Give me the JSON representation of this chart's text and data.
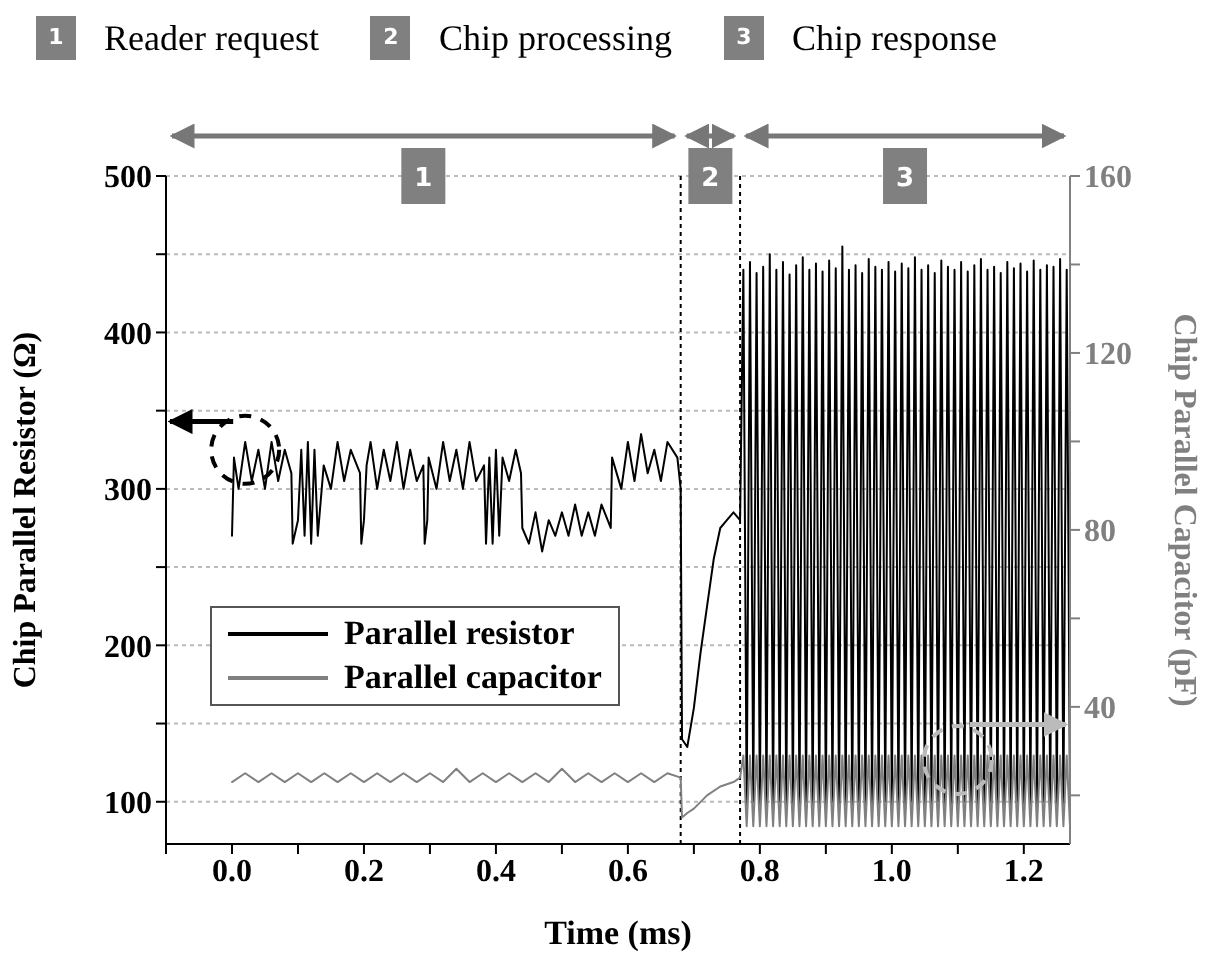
{
  "chart_data": {
    "type": "line",
    "xlabel": "Time (ms)",
    "ylabel": "Chip Parallel Resistor (Ω)",
    "y2label": "Chip Parallel Capacitor (pF)",
    "xlim": [
      -0.1,
      1.27
    ],
    "xticks": [
      {
        "value": -0.1,
        "label": null
      },
      {
        "value": 0,
        "label": "0.0"
      },
      {
        "value": 0.1,
        "label": null
      },
      {
        "value": 0.2,
        "label": "0.2"
      },
      {
        "value": 0.3,
        "label": null
      },
      {
        "value": 0.4,
        "label": "0.4"
      },
      {
        "value": 0.5,
        "label": null
      },
      {
        "value": 0.6,
        "label": "0.6"
      },
      {
        "value": 0.7,
        "label": null
      },
      {
        "value": 0.8,
        "label": "0.8"
      },
      {
        "value": 0.9,
        "label": null
      },
      {
        "value": 1.0,
        "label": "1.0"
      },
      {
        "value": 1.1,
        "label": null
      },
      {
        "value": 1.2,
        "label": "1.2"
      }
    ],
    "ylim": [
      73,
      500
    ],
    "yticks": [
      100,
      {
        "value": 150,
        "label": null
      },
      200,
      {
        "value": 250,
        "label": null
      },
      300,
      {
        "value": 350,
        "label": null
      },
      400,
      {
        "value": 450,
        "label": null
      },
      500
    ],
    "y2lim": [
      9,
      160
    ],
    "y2ticks": [
      {
        "value": 20,
        "label": null
      },
      40,
      {
        "value": 60,
        "label": null
      },
      80,
      {
        "value": 100,
        "label": null
      },
      120,
      {
        "value": 140,
        "label": null
      },
      160
    ],
    "grid": "y",
    "legend": "bottom left",
    "ref_lines": [
      {
        "axis": "x",
        "value": 0.68,
        "line_style": "dotted",
        "color": "#000000"
      },
      {
        "axis": "x",
        "value": 0.77,
        "line_style": "dotted",
        "color": "#000000"
      }
    ],
    "annotations": [
      {
        "text": "1",
        "x": 0.29,
        "y": 500
      },
      {
        "text": "2",
        "x": 0.725,
        "y": 500
      },
      {
        "text": "3",
        "x": 1.02,
        "y": 500
      },
      "Reader request",
      "Chip processing",
      "Chip response"
    ],
    "series": [
      {
        "name": "Parallel resistor",
        "color": "#000000",
        "x": [
          0,
          0.003,
          0.01,
          0.02,
          0.03,
          0.04,
          0.05,
          0.06,
          0.07,
          0.08,
          0.09,
          0.092,
          0.1,
          0.105,
          0.11,
          0.115,
          0.12,
          0.125,
          0.13,
          0.139,
          0.15,
          0.16,
          0.17,
          0.18,
          0.194,
          0.196,
          0.2,
          0.204,
          0.21,
          0.22,
          0.23,
          0.24,
          0.25,
          0.26,
          0.27,
          0.28,
          0.29,
          0.292,
          0.296,
          0.298,
          0.31,
          0.32,
          0.33,
          0.34,
          0.35,
          0.36,
          0.37,
          0.382,
          0.385,
          0.39,
          0.395,
          0.4,
          0.405,
          0.41,
          0.42,
          0.43,
          0.438,
          0.44,
          0.45,
          0.46,
          0.47,
          0.48,
          0.49,
          0.5,
          0.51,
          0.52,
          0.53,
          0.54,
          0.55,
          0.56,
          0.574,
          0.576,
          0.59,
          0.6,
          0.61,
          0.62,
          0.63,
          0.64,
          0.65,
          0.66,
          0.675,
          0.68,
          0.682,
          0.69,
          0.7,
          0.71,
          0.72,
          0.73,
          0.74,
          0.75,
          0.76,
          0.77,
          0.775,
          0.78,
          0.785,
          0.79,
          0.795,
          0.8,
          0.805,
          0.81,
          0.815,
          0.82,
          0.825,
          0.83,
          0.835,
          0.84,
          0.845,
          0.85,
          0.855,
          0.86,
          0.865,
          0.87,
          0.875,
          0.88,
          0.885,
          0.89,
          0.895,
          0.9,
          0.905,
          0.91,
          0.915,
          0.92,
          0.925,
          0.93,
          0.935,
          0.94,
          0.945,
          0.95,
          0.955,
          0.96,
          0.965,
          0.97,
          0.975,
          0.98,
          0.985,
          0.99,
          0.995,
          1.0,
          1.005,
          1.01,
          1.015,
          1.02,
          1.025,
          1.03,
          1.035,
          1.04,
          1.045,
          1.05,
          1.055,
          1.06,
          1.065,
          1.07,
          1.075,
          1.08,
          1.085,
          1.09,
          1.095,
          1.1,
          1.105,
          1.11,
          1.115,
          1.12,
          1.125,
          1.13,
          1.135,
          1.14,
          1.145,
          1.15,
          1.155,
          1.16,
          1.165,
          1.17,
          1.175,
          1.18,
          1.185,
          1.19,
          1.195,
          1.2,
          1.205,
          1.21,
          1.215,
          1.22,
          1.225,
          1.23,
          1.235,
          1.24,
          1.245,
          1.25,
          1.255,
          1.26,
          1.265,
          1.27
        ],
        "values": [
          270,
          320,
          300,
          330,
          305,
          325,
          300,
          330,
          305,
          325,
          310,
          265,
          280,
          325,
          270,
          330,
          265,
          325,
          270,
          315,
          300,
          330,
          305,
          325,
          310,
          265,
          280,
          315,
          330,
          300,
          325,
          305,
          330,
          300,
          325,
          305,
          315,
          265,
          280,
          320,
          300,
          330,
          305,
          325,
          300,
          330,
          305,
          315,
          265,
          320,
          265,
          325,
          270,
          320,
          305,
          325,
          310,
          275,
          265,
          285,
          260,
          280,
          270,
          285,
          270,
          290,
          270,
          285,
          270,
          290,
          275,
          320,
          300,
          330,
          305,
          335,
          310,
          325,
          305,
          330,
          320,
          300,
          140,
          135,
          160,
          195,
          225,
          255,
          275,
          280,
          285,
          280,
          440,
          95,
          445,
          100,
          438,
          95,
          442,
          98,
          450,
          95,
          440,
          100,
          445,
          95,
          437,
          98,
          443,
          95,
          448,
          100,
          440,
          95,
          444,
          98,
          439,
          95,
          446,
          100,
          441,
          95,
          455,
          98,
          440,
          95,
          443,
          100,
          438,
          95,
          447,
          98,
          442,
          95,
          440,
          100,
          445,
          95,
          439,
          98,
          444,
          95,
          441,
          100,
          448,
          95,
          440,
          98,
          443,
          95,
          438,
          100,
          446,
          95,
          442,
          98,
          440,
          95,
          445,
          100,
          439,
          95,
          443,
          98,
          447,
          95,
          440,
          100,
          442,
          95,
          438,
          98,
          445,
          95,
          441,
          100,
          444,
          95,
          439,
          98,
          446,
          95,
          440,
          100,
          443,
          95,
          442,
          98,
          447,
          95,
          440,
          100
        ]
      },
      {
        "name": "Parallel capacitor",
        "color": "#808080",
        "axis": "y2",
        "x": [
          0,
          0.02,
          0.04,
          0.06,
          0.08,
          0.1,
          0.12,
          0.14,
          0.16,
          0.18,
          0.2,
          0.22,
          0.24,
          0.26,
          0.28,
          0.3,
          0.32,
          0.34,
          0.36,
          0.38,
          0.4,
          0.42,
          0.44,
          0.46,
          0.48,
          0.5,
          0.52,
          0.54,
          0.56,
          0.58,
          0.6,
          0.62,
          0.64,
          0.66,
          0.68,
          0.682,
          0.69,
          0.7,
          0.72,
          0.74,
          0.76,
          0.77,
          0.775,
          0.78,
          0.785,
          0.79,
          0.795,
          0.8,
          0.805,
          0.81,
          0.815,
          0.82,
          0.825,
          0.83,
          0.835,
          0.84,
          0.845,
          0.85,
          0.855,
          0.86,
          0.865,
          0.87,
          0.875,
          0.88,
          0.885,
          0.89,
          0.895,
          0.9,
          0.905,
          0.91,
          0.915,
          0.92,
          0.925,
          0.93,
          0.935,
          0.94,
          0.945,
          0.95,
          0.955,
          0.96,
          0.965,
          0.97,
          0.975,
          0.98,
          0.985,
          0.99,
          0.995,
          1.0,
          1.005,
          1.01,
          1.015,
          1.02,
          1.025,
          1.03,
          1.035,
          1.04,
          1.045,
          1.05,
          1.055,
          1.06,
          1.065,
          1.07,
          1.075,
          1.08,
          1.085,
          1.09,
          1.095,
          1.1,
          1.105,
          1.11,
          1.115,
          1.12,
          1.125,
          1.13,
          1.135,
          1.14,
          1.145,
          1.15,
          1.155,
          1.16,
          1.165,
          1.17,
          1.175,
          1.18,
          1.185,
          1.19,
          1.195,
          1.2,
          1.205,
          1.21,
          1.215,
          1.22,
          1.225,
          1.23,
          1.235,
          1.24,
          1.245,
          1.25,
          1.255,
          1.26,
          1.265,
          1.27
        ],
        "values": [
          23,
          25,
          23,
          25,
          23,
          25,
          23,
          25,
          23,
          25,
          23,
          25,
          23,
          25,
          23,
          25,
          23,
          26,
          23,
          25,
          23,
          25,
          23,
          25,
          23,
          26,
          23,
          25,
          23,
          25,
          23,
          25,
          23,
          25,
          24,
          15,
          16,
          17,
          20,
          22,
          23,
          24,
          29,
          13,
          29,
          13,
          29,
          13,
          29,
          13,
          29,
          13,
          29,
          13,
          29,
          13,
          29,
          13,
          29,
          13,
          29,
          13,
          29,
          13,
          29,
          13,
          29,
          13,
          29,
          13,
          29,
          13,
          29,
          13,
          29,
          13,
          29,
          13,
          29,
          13,
          29,
          13,
          29,
          13,
          29,
          13,
          29,
          13,
          29,
          13,
          29,
          13,
          29,
          13,
          29,
          13,
          29,
          13,
          29,
          13,
          29,
          13,
          29,
          13,
          29,
          13,
          29,
          13,
          29,
          13,
          29,
          13,
          29,
          13,
          29,
          13,
          29,
          13,
          29,
          13,
          29,
          13,
          29,
          13,
          29,
          13,
          29,
          13,
          29,
          13,
          29,
          13,
          29,
          13,
          29,
          13,
          29,
          13,
          29,
          13,
          29,
          13
        ]
      }
    ]
  }
}
